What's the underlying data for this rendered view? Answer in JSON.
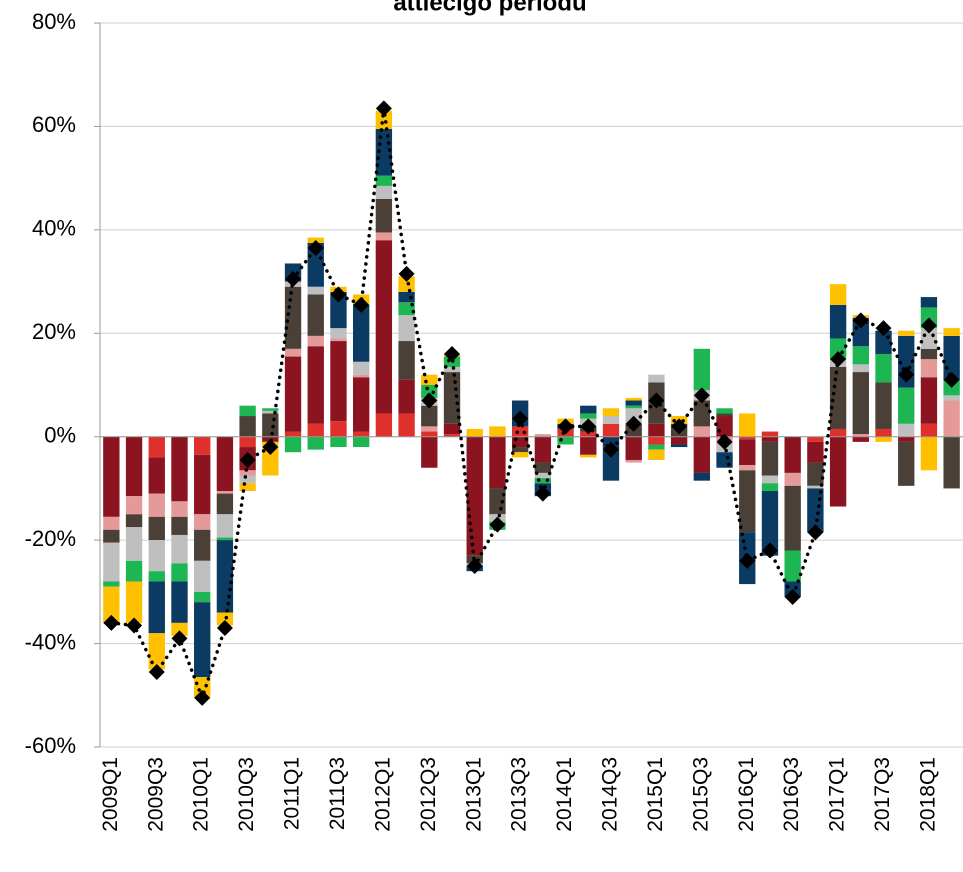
{
  "chart_data": {
    "type": "stacked-bar-line",
    "title": "attiecīgo periodu",
    "categories": [
      "2009Q1",
      null,
      "2009Q3",
      null,
      "2010Q1",
      null,
      "2010Q3",
      null,
      "2011Q1",
      null,
      "2011Q3",
      null,
      "2012Q1",
      null,
      "2012Q3",
      null,
      "2013Q1",
      null,
      "2013Q3",
      null,
      "2014Q1",
      null,
      "2014Q3",
      null,
      "2015Q1",
      null,
      "2015Q3",
      null,
      "2016Q1",
      null,
      "2016Q3",
      null,
      "2017Q1",
      null,
      "2017Q3",
      null,
      "2018Q1",
      null
    ],
    "series": [
      {
        "color": "#e0302b",
        "values": [
          0,
          0,
          -4,
          0,
          -3.5,
          0,
          -2,
          0,
          1,
          2.5,
          3,
          1,
          4.5,
          4.5,
          1,
          0.5,
          0,
          0,
          2,
          0,
          1.5,
          1,
          2.5,
          0,
          -1.5,
          0,
          0,
          0,
          -0.5,
          1,
          0,
          -1,
          1.5,
          0,
          1.5,
          0,
          2.5,
          0
        ]
      },
      {
        "color": "#8b1420",
        "values": [
          -15.5,
          -11.5,
          -7,
          -12.5,
          -11.5,
          -10.5,
          -4.5,
          -1,
          14.5,
          15,
          15.5,
          10.5,
          33.5,
          6.5,
          -6,
          2,
          -23,
          -10,
          -2,
          -5,
          0,
          -3.5,
          0,
          -4.5,
          2.5,
          -1.5,
          -7,
          4,
          -5,
          -1,
          -7,
          -4,
          -13.5,
          -1,
          0,
          -1,
          9,
          0
        ]
      },
      {
        "color": "#e59a9a",
        "values": [
          -2.5,
          -3.5,
          -4.5,
          -3,
          -3,
          -0.5,
          -1,
          0,
          1.5,
          2,
          0.5,
          0.5,
          1.5,
          0,
          1,
          0,
          0,
          0,
          0,
          0.5,
          0,
          0,
          0,
          -0.5,
          0,
          0,
          2,
          -1.5,
          -1,
          0,
          -2.5,
          0,
          0,
          0.5,
          0,
          0,
          3.5,
          7
        ]
      },
      {
        "color": "#4a4037",
        "values": [
          -2.5,
          -2.5,
          -4.5,
          -3.5,
          -6,
          -4,
          4,
          4.5,
          12,
          8,
          0,
          0,
          6.5,
          7.5,
          4,
          10,
          -1.5,
          -5,
          -1,
          -2,
          0,
          1,
          0,
          2.5,
          8,
          2.5,
          5,
          0.5,
          -12,
          -6.5,
          -12.5,
          -4.5,
          12,
          12,
          9,
          -8.5,
          2,
          -10
        ]
      },
      {
        "color": "#bfbfbf",
        "values": [
          -7.5,
          -6.5,
          -6,
          -5.5,
          -6,
          -4.5,
          -1.5,
          0.5,
          1,
          1.5,
          2,
          2.5,
          2.5,
          5,
          1.5,
          1,
          -0.5,
          -1.5,
          0,
          -1,
          0,
          1.5,
          1.5,
          3,
          1.5,
          0,
          2,
          -1.5,
          0,
          -1.5,
          0,
          -0.5,
          1.5,
          1.5,
          0,
          2.5,
          4,
          1
        ]
      },
      {
        "color": "#1eb553",
        "values": [
          -1,
          -4,
          -2,
          -3.5,
          -2,
          -0.5,
          2,
          0.5,
          -3,
          -2.5,
          -2,
          -2,
          2,
          2.5,
          2.5,
          2,
          0,
          -1.5,
          0,
          -1,
          -1.5,
          1,
          0,
          0.5,
          -1,
          0,
          8,
          1,
          0,
          -1.5,
          -6,
          0,
          4,
          3.5,
          5.5,
          7,
          4,
          3
        ]
      },
      {
        "color": "#0b3a62",
        "values": [
          0,
          0,
          -10,
          -8,
          -14.5,
          -14,
          0,
          0,
          3.5,
          8.5,
          7,
          11,
          9,
          2,
          0,
          0,
          -1,
          0,
          5,
          -2.5,
          1,
          1.5,
          -8.5,
          1,
          0,
          -0.5,
          -1.5,
          -3,
          -10,
          -12.5,
          -3,
          -8.5,
          6.5,
          5.5,
          4.5,
          10,
          2,
          8.5
        ]
      },
      {
        "color": "#ffc000",
        "values": [
          -7,
          -8,
          -7,
          -2.5,
          -4,
          -2.5,
          -1.5,
          -6.5,
          0,
          1,
          1,
          2,
          3.5,
          3,
          2,
          0.5,
          1.5,
          2,
          -1,
          0,
          1,
          -0.5,
          1.5,
          0.5,
          -2,
          1.5,
          0,
          0,
          4.5,
          0,
          0,
          0,
          4,
          0.5,
          -1,
          1,
          -6.5,
          1.5
        ]
      }
    ],
    "line": {
      "color": "#000000",
      "values": [
        -36,
        -36.5,
        -45.5,
        -39,
        -50.5,
        -37,
        -4.5,
        -2,
        30.5,
        36.5,
        27.5,
        25.5,
        63.5,
        31.5,
        7,
        16,
        -25,
        -17,
        3.5,
        -11,
        2,
        2,
        -2.5,
        2.5,
        7,
        2,
        8,
        -1,
        -24,
        -22,
        -31,
        -18.5,
        15,
        22.5,
        21,
        12,
        21.5,
        11
      ]
    },
    "ylim": [
      -60,
      80
    ],
    "yticks": [
      {
        "value": -60,
        "label": "-60%"
      },
      {
        "value": -40,
        "label": "-40%"
      },
      {
        "value": -20,
        "label": "-20%"
      },
      {
        "value": 0,
        "label": "0%"
      },
      {
        "value": 20,
        "label": "20%"
      },
      {
        "value": 40,
        "label": "40%"
      },
      {
        "value": 60,
        "label": "60%"
      },
      {
        "value": 80,
        "label": "80%"
      }
    ],
    "grid": true
  }
}
